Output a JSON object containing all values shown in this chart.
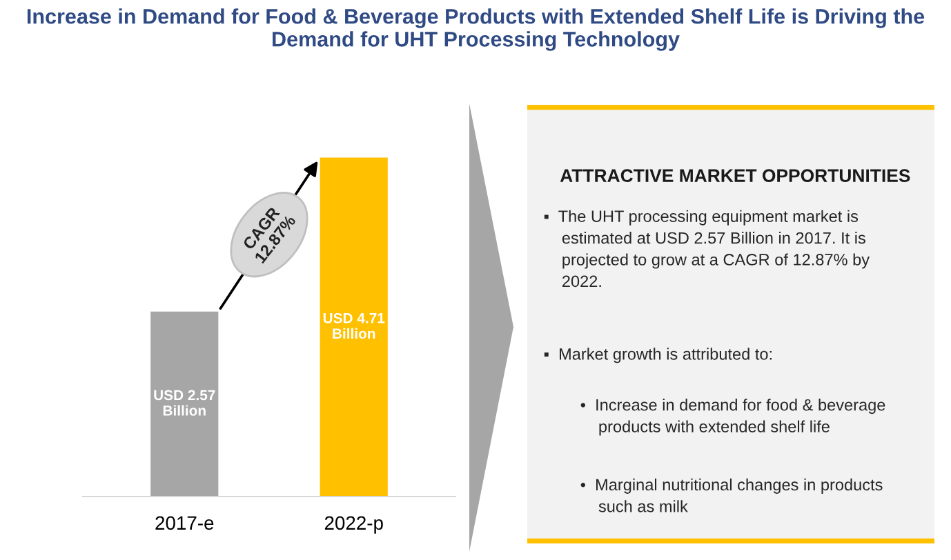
{
  "chart_data": [
    {
      "type": "bar",
      "title": "Increase in Demand for Food & Beverage Products with Extended Shelf Life is Driving the Demand for UHT Processing Technology",
      "categories": [
        "2017-e",
        "2022-p"
      ],
      "values": [
        2.57,
        4.71
      ],
      "colors": [
        "#a6a6a6",
        "#ffc000"
      ],
      "value_labels": [
        "USD 2.57\nBillion",
        "USD 4.71\nBillion"
      ],
      "annotations": [
        "CAGR\n12.87%"
      ],
      "grid": false,
      "legend": false
    },
    {
      "type": "other",
      "title": "ATTRACTIVE MARKET OPPORTUNITIES",
      "annotations": [
        "▪  The UHT processing equipment market is\n    estimated at USD 2.57 Billion in 2017. It is\n    projected to grow at a CAGR of 12.87% by\n    2022.",
        "▪  Market growth is attributed to:",
        "•  Increase in demand for food & beverage\n    products with extended shelf life",
        "•  Marginal nutritional changes in products\n    such as milk"
      ]
    }
  ]
}
